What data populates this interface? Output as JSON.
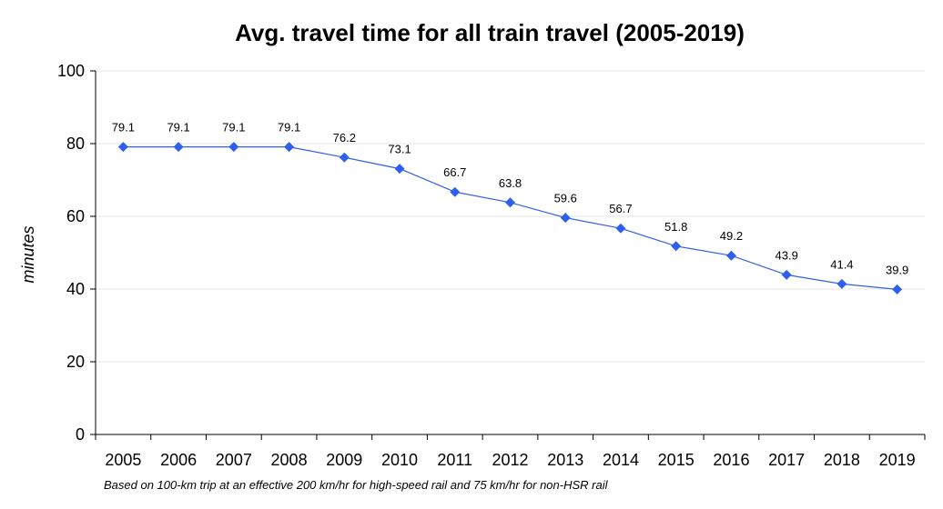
{
  "chart_data": {
    "type": "line",
    "title": "Avg. travel time for all train travel (2005-2019)",
    "xlabel": "",
    "ylabel": "minutes",
    "ylim": [
      0,
      100
    ],
    "yticks": [
      "0",
      "20",
      "40",
      "60",
      "80",
      "100"
    ],
    "grid": "horizontal",
    "legend": "none",
    "categories": [
      "2005",
      "2006",
      "2007",
      "2008",
      "2009",
      "2010",
      "2011",
      "2012",
      "2013",
      "2014",
      "2015",
      "2016",
      "2017",
      "2018",
      "2019"
    ],
    "series": [
      {
        "values": [
          79.1,
          79.1,
          79.1,
          79.1,
          76.2,
          73.1,
          66.7,
          63.8,
          59.6,
          56.7,
          51.8,
          49.2,
          43.9,
          41.4,
          39.9
        ],
        "labels": [
          "79.1",
          "79.1",
          "79.1",
          "79.1",
          "76.2",
          "73.1",
          "66.7",
          "63.8",
          "59.6",
          "56.7",
          "51.8",
          "49.2",
          "43.9",
          "41.4",
          "39.9"
        ],
        "color": "#2f5ff0",
        "marker": "diamond"
      }
    ],
    "footnote": "Based on 100-km trip at an effective 200 km/hr for high-speed rail and 75 km/hr for non-HSR rail"
  },
  "colors": {
    "grid": "#e4e4e4",
    "axis": "#000000",
    "line": "#2f5ff0",
    "marker": "#2f5ff0"
  }
}
